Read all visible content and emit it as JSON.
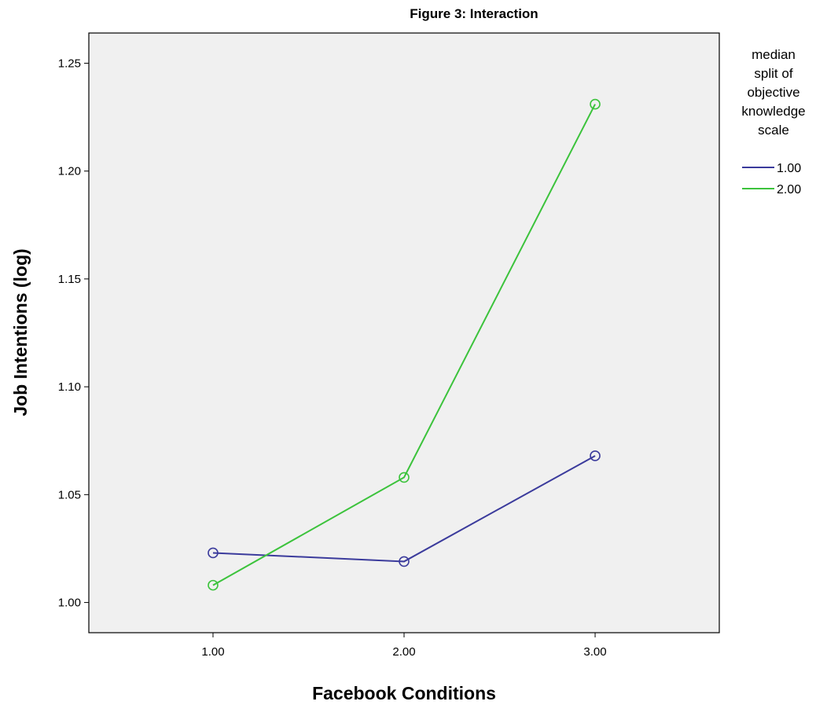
{
  "chart_data": {
    "type": "line",
    "title": "Figure 3: Interaction",
    "xlabel": "Facebook Conditions",
    "ylabel": "Job Intentions (log)",
    "x": [
      1.0,
      2.0,
      3.0
    ],
    "x_tick_labels": [
      "1.00",
      "2.00",
      "3.00"
    ],
    "xlim": [
      0.35,
      3.65
    ],
    "y_ticks": [
      1.0,
      1.05,
      1.1,
      1.15,
      1.2,
      1.25
    ],
    "y_tick_labels": [
      "1.00",
      "1.05",
      "1.10",
      "1.15",
      "1.20",
      "1.25"
    ],
    "ylim": [
      0.986,
      1.264
    ],
    "grid": false,
    "legend": {
      "placement": "right",
      "title_lines": [
        "median",
        "split of",
        "objective",
        "knowledge",
        "scale"
      ]
    },
    "series": [
      {
        "name": "1.00",
        "color": "#3b3b9c",
        "marker": "circle-open",
        "values": [
          1.023,
          1.019,
          1.068
        ]
      },
      {
        "name": "2.00",
        "color": "#3cc33c",
        "marker": "circle-open",
        "values": [
          1.008,
          1.058,
          1.231
        ]
      }
    ],
    "plot_background": "#f0f0f0"
  }
}
